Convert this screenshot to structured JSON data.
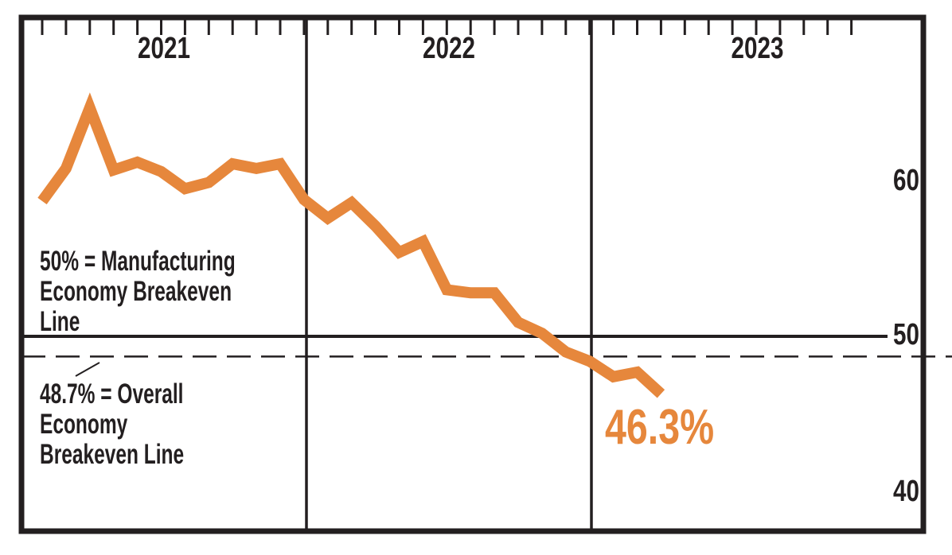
{
  "chart_data": {
    "type": "line",
    "x_years": [
      "2021",
      "2022",
      "2023"
    ],
    "months": [
      "2021-01",
      "2021-02",
      "2021-03",
      "2021-04",
      "2021-05",
      "2021-06",
      "2021-07",
      "2021-08",
      "2021-09",
      "2021-10",
      "2021-11",
      "2021-12",
      "2022-01",
      "2022-02",
      "2022-03",
      "2022-04",
      "2022-05",
      "2022-06",
      "2022-07",
      "2022-08",
      "2022-09",
      "2022-10",
      "2022-11",
      "2022-12",
      "2023-01",
      "2023-02",
      "2023-03"
    ],
    "series": [
      {
        "values": [
          58.7,
          60.8,
          64.7,
          60.7,
          61.2,
          60.6,
          59.5,
          59.9,
          61.1,
          60.8,
          61.1,
          58.8,
          57.6,
          58.6,
          57.1,
          55.4,
          56.1,
          53.0,
          52.8,
          52.8,
          50.9,
          50.2,
          49.0,
          48.4,
          47.4,
          47.7,
          46.3
        ]
      }
    ],
    "y_ticks": [
      60,
      50,
      40
    ],
    "y_tick_labels": [
      "60",
      "50",
      "40"
    ],
    "ylim": [
      37.5,
      70.5
    ],
    "grid": "off",
    "legend": "none",
    "reference_lines": [
      {
        "value": 50,
        "style": "solid",
        "label": "50% = Manufacturing Economy Breakeven Line"
      },
      {
        "value": 48.7,
        "style": "dashed",
        "label": "48.7% = Overall Economy Breakeven Line"
      }
    ],
    "end_label": "46.3%",
    "colors": {
      "line": "#E6873C",
      "axis": "#231F20"
    }
  },
  "annotations": {
    "manufacturing_breakeven": {
      "lines": [
        "50% = Manufacturing",
        "Economy Breakeven",
        "Line"
      ]
    },
    "overall_breakeven": {
      "lines": [
        "48.7% = Overall",
        "Economy",
        "Breakeven Line"
      ]
    }
  }
}
